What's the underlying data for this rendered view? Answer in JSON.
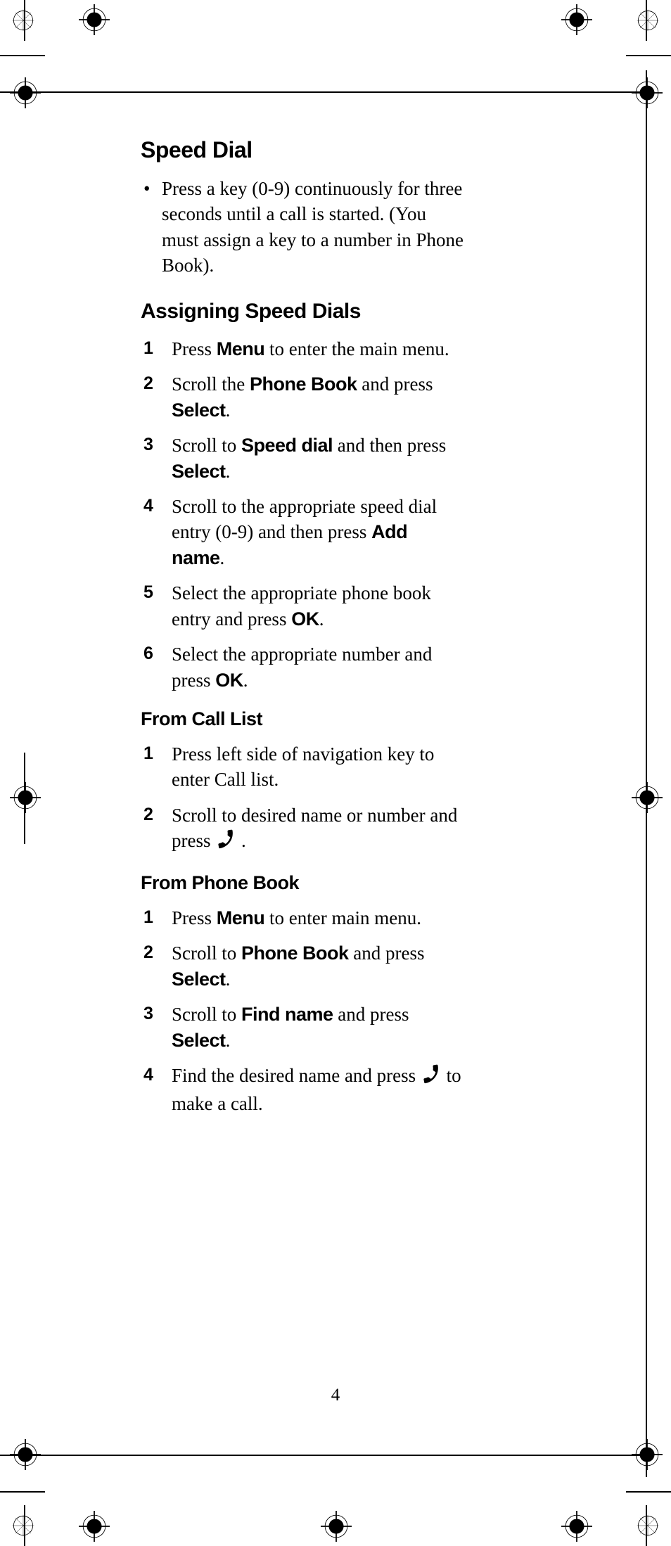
{
  "page_number": "4",
  "section_title": "Speed Dial",
  "bullet_text": " Press a key (0-9) continuously for three seconds until a call is started. (You must assign a key to a number in Phone Book).",
  "assign_title": "Assigning Speed Dials",
  "assign_steps": [
    {
      "pre": "Press ",
      "btn1": "Menu",
      "post": " to enter the main menu."
    },
    {
      "pre": "Scroll the ",
      "btn1": "Phone Book",
      "mid": " and press ",
      "btn2": "Select",
      "post": "."
    },
    {
      "pre": "Scroll to ",
      "btn1": "Speed dial",
      "mid": " and then press ",
      "btn2": "Select",
      "post": "."
    },
    {
      "pre": "Scroll to the appropriate speed dial entry (0-9) and then press ",
      "btn1": "Add name",
      "post": "."
    },
    {
      "pre": "Select the appropriate phone book entry and press ",
      "btn1": "OK",
      "post": "."
    },
    {
      "pre": "Select the appropriate number and press ",
      "btn1": "OK",
      "post": "."
    }
  ],
  "calllist_title": "From Call List",
  "calllist_steps": [
    {
      "pre": "Press left side of navigation key to enter Call list."
    },
    {
      "pre": "Scroll to desired name or number and press ",
      "icon": true,
      "post": " ."
    }
  ],
  "phonebook_title": "From Phone Book",
  "phonebook_steps": [
    {
      "pre": "Press ",
      "btn1": "Menu",
      "post": " to enter main menu."
    },
    {
      "pre": "Scroll to ",
      "btn1": "Phone Book",
      "mid": " and press ",
      "btn2": "Select",
      "post": "."
    },
    {
      "pre": "Scroll to ",
      "btn1": "Find name",
      "mid": " and press ",
      "btn2": "Select",
      "post": "."
    },
    {
      "pre": "Find the desired name and press ",
      "icon": true,
      "post": " to make a call."
    }
  ],
  "colors": {
    "text": "#000000",
    "bg": "#ffffff"
  }
}
